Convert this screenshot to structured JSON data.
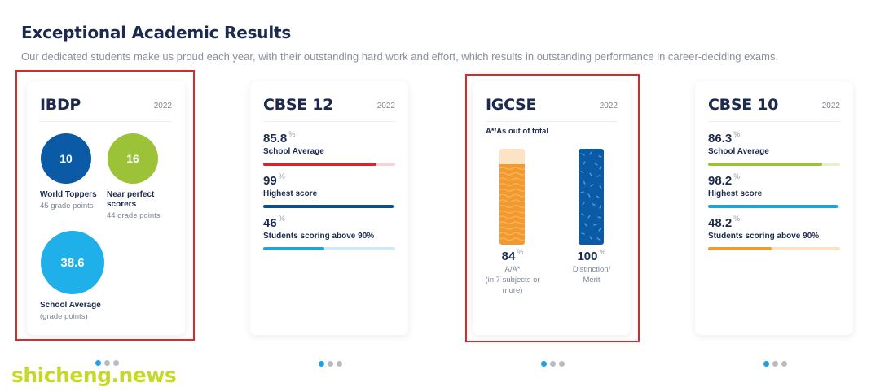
{
  "section": {
    "title": "Exceptional Academic Results",
    "subtitle": "Our dedicated students make us proud each year, with their outstanding hard work and effort, which results in outstanding performance in career-deciding exams."
  },
  "cards": {
    "ibdp": {
      "name": "IBDP",
      "year": "2022",
      "circles": [
        {
          "value": "10",
          "label": "World Toppers",
          "sub": "45 grade points",
          "color": "#0a5aa6"
        },
        {
          "value": "16",
          "label": "Near perfect scorers",
          "sub": "44 grade points",
          "color": "#9cc238"
        },
        {
          "value": "38.6",
          "label": "School Average",
          "sub": "(grade points)",
          "color": "#1fb0ea"
        }
      ]
    },
    "cbse12": {
      "name": "CBSE 12",
      "year": "2022",
      "stats": [
        {
          "value": "85.8",
          "unit": "%",
          "label": "School Average",
          "fraction": 0.858,
          "fill_color": "#d7262e",
          "track_color": "#f8d3d5"
        },
        {
          "value": "99",
          "unit": "%",
          "label": "Highest score",
          "fraction": 0.99,
          "fill_color": "#0a4e8c",
          "track_color": "#c9d9ea"
        },
        {
          "value": "46",
          "unit": "%",
          "label": "Students scoring above 90%",
          "fraction": 0.46,
          "fill_color": "#1fa4d8",
          "track_color": "#cfeaf6"
        }
      ]
    },
    "igcse": {
      "name": "IGCSE",
      "year": "2022",
      "caption": "A*/As out of total",
      "bars": [
        {
          "value": "84",
          "unit": "%",
          "label": "A/A*",
          "sub": "(in 7 subjects or more)",
          "fraction": 0.84,
          "fill_color": "#f29a2e",
          "track_color": "#fde3c6"
        },
        {
          "value": "100",
          "unit": "%",
          "label": "Distinction/ Merit",
          "fraction": 1.0,
          "fill_color": "#0a5aa6",
          "track_color": "#c9d9ea"
        }
      ]
    },
    "cbse10": {
      "name": "CBSE 10",
      "year": "2022",
      "stats": [
        {
          "value": "86.3",
          "unit": "%",
          "label": "School Average",
          "fraction": 0.863,
          "fill_color": "#9cc238",
          "track_color": "#e6f0cf"
        },
        {
          "value": "98.2",
          "unit": "%",
          "label": "Highest score",
          "fraction": 0.982,
          "fill_color": "#1fa4d8",
          "track_color": "#cfeaf6"
        },
        {
          "value": "48.2",
          "unit": "%",
          "label": "Students scoring above 90%",
          "fraction": 0.482,
          "fill_color": "#f29a2e",
          "track_color": "#fbe2c4"
        }
      ]
    }
  },
  "pagination": {
    "dots_per_card": 3,
    "active_index": 0
  },
  "watermark": "shicheng.news",
  "colors": {
    "highlight": "#e0262a",
    "active_dot": "#1aa3e8",
    "inactive_dot": "#b7bbc3"
  }
}
